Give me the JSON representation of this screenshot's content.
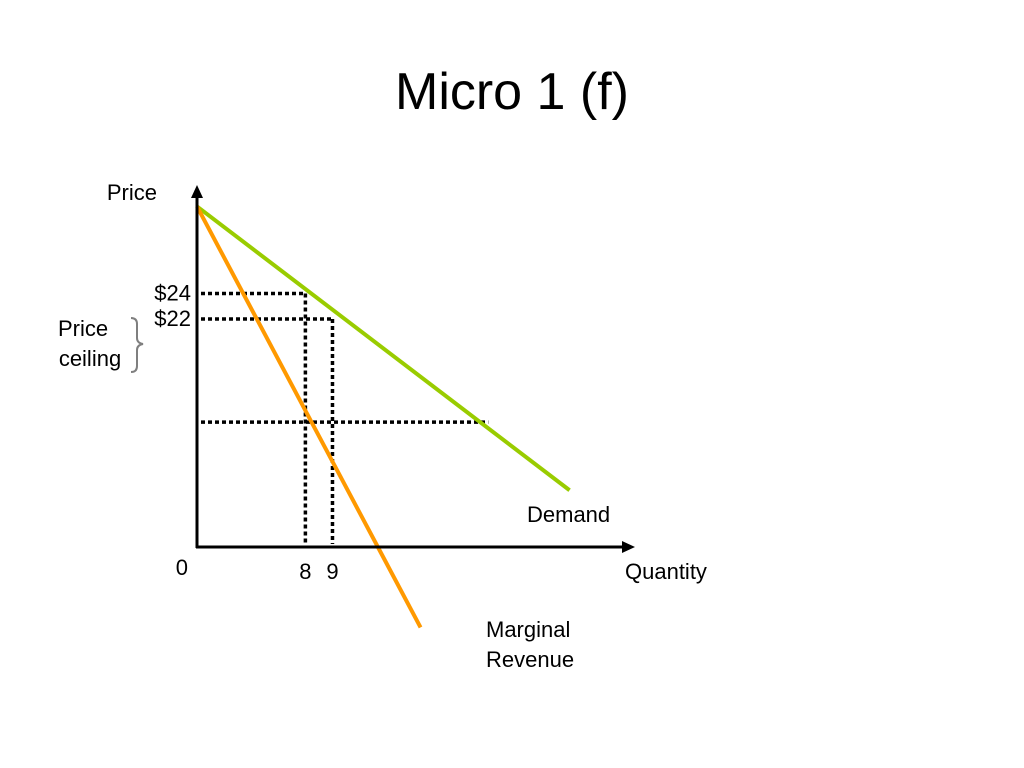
{
  "slide": {
    "title": "Micro 1 (f)"
  },
  "chart_data": {
    "type": "line",
    "xlabel": "Quantity",
    "ylabel": "Price",
    "origin_label": "0",
    "xlim": [
      0,
      31
    ],
    "ylim": [
      0,
      37
    ],
    "series": [
      {
        "name": "Demand",
        "x": [
          0,
          27.5
        ],
        "y": [
          36,
          6
        ],
        "color": "#99cc00"
      },
      {
        "name": "Marginal Revenue",
        "x": [
          0,
          16.5
        ],
        "y": [
          36,
          -8.5
        ],
        "color": "#ff9900"
      }
    ],
    "y_ticks": [
      {
        "label": "$24",
        "value": 26.8
      },
      {
        "label": "$22",
        "value": 24.1
      }
    ],
    "x_ticks": [
      {
        "label": "8",
        "value": 8
      },
      {
        "label": "9",
        "value": 10
      }
    ],
    "guides": {
      "horizontal": [
        {
          "y": 26.8,
          "x_end": 8
        },
        {
          "y": 24.1,
          "x_end": 10
        },
        {
          "y": 13.2,
          "x_end": 21.5
        }
      ],
      "vertical": [
        {
          "x": 8,
          "y_end": 26.8
        },
        {
          "x": 10,
          "y_end": 24.1
        }
      ]
    },
    "annotations": {
      "price_ceiling": [
        "Price",
        "ceiling"
      ],
      "demand": "Demand",
      "marginal_revenue": [
        "Marginal",
        "Revenue"
      ]
    },
    "colors": {
      "demand": "#99cc00",
      "marginal_revenue": "#ff9900",
      "axis": "#000000",
      "guide": "#000000",
      "brace": "#7f7f7f"
    }
  }
}
